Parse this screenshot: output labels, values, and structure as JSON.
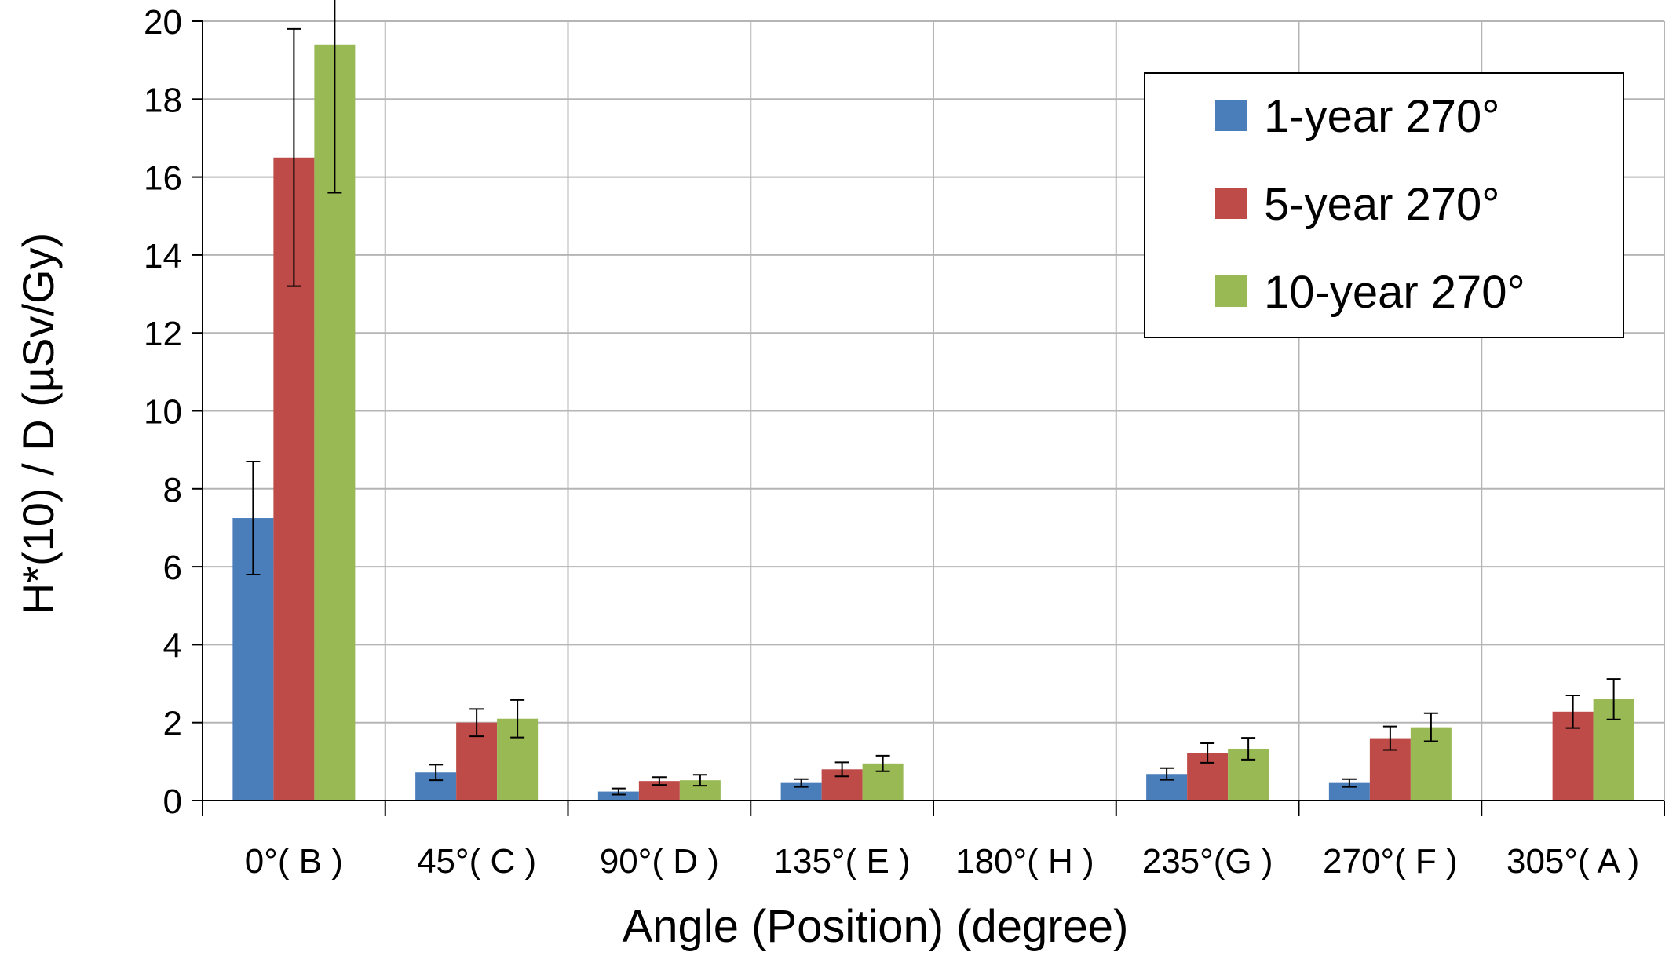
{
  "chart_data": {
    "type": "bar",
    "title": "",
    "xlabel": "Angle (Position) (degree)",
    "ylabel": "H*(10) / D (µSv/Gy)",
    "ylim": [
      0,
      20
    ],
    "yticks": [
      "0",
      "2",
      "4",
      "6",
      "8",
      "10",
      "12",
      "14",
      "16",
      "18",
      "20"
    ],
    "categories": [
      "0°( B )",
      "45°( C )",
      "90°( D )",
      "135°( E )",
      "180°( H )",
      "235°(G )",
      "270°( F )",
      "305°( A )"
    ],
    "grid": true,
    "legend_position": "top-right",
    "series": [
      {
        "name": "1-year 270°",
        "color": "#4a7ebb",
        "values": [
          7.25,
          0.72,
          0.23,
          0.45,
          null,
          0.68,
          0.45,
          null
        ],
        "errors": [
          1.45,
          0.2,
          0.08,
          0.1,
          null,
          0.15,
          0.1,
          null
        ]
      },
      {
        "name": "5-year 270°",
        "color": "#be4b48",
        "values": [
          16.5,
          2.0,
          0.5,
          0.8,
          null,
          1.22,
          1.6,
          2.28
        ],
        "errors": [
          3.3,
          0.35,
          0.1,
          0.18,
          null,
          0.25,
          0.3,
          0.42
        ]
      },
      {
        "name": "10-year 270°",
        "color": "#98b954",
        "values": [
          19.4,
          2.1,
          0.52,
          0.95,
          null,
          1.33,
          1.88,
          2.6
        ],
        "errors": [
          3.8,
          0.48,
          0.14,
          0.2,
          null,
          0.28,
          0.36,
          0.52
        ]
      }
    ]
  }
}
